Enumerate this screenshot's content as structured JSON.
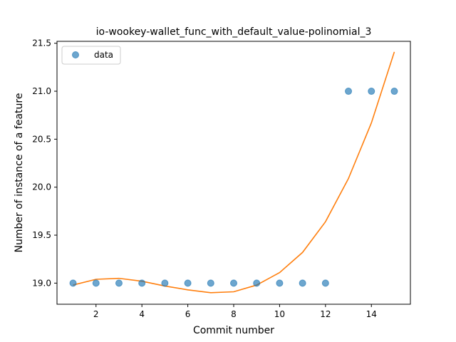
{
  "chart_data": {
    "type": "scatter",
    "title": "io-wookey-wallet_func_with_default_value-polinomial_3",
    "xlabel": "Commit number",
    "ylabel": "Number of instance of a feature",
    "xlim": [
      0.3,
      15.7
    ],
    "ylim": [
      18.78,
      21.52
    ],
    "xticks": [
      2,
      4,
      6,
      8,
      10,
      12,
      14
    ],
    "yticks": [
      19.0,
      19.5,
      20.0,
      20.5,
      21.0,
      21.5
    ],
    "ytick_labels": [
      "19.0",
      "19.5",
      "20.0",
      "20.5",
      "21.0",
      "21.5"
    ],
    "grid": false,
    "legend_position": "upper-left",
    "series": [
      {
        "name": "data",
        "kind": "scatter",
        "color": "#1f77b4",
        "x": [
          1,
          2,
          3,
          4,
          5,
          6,
          7,
          8,
          9,
          10,
          11,
          12,
          13,
          14,
          15
        ],
        "y": [
          19,
          19,
          19,
          19,
          19,
          19,
          19,
          19,
          19,
          19,
          19,
          19,
          21,
          21,
          21
        ]
      },
      {
        "kind": "line",
        "color": "#ff7f0e",
        "x": [
          1,
          2,
          3,
          4,
          5,
          6,
          7,
          8,
          9,
          10,
          11,
          12,
          13,
          14,
          15
        ],
        "y": [
          18.98,
          19.04,
          19.05,
          19.02,
          18.97,
          18.93,
          18.9,
          18.91,
          18.98,
          19.11,
          19.32,
          19.64,
          20.09,
          20.67,
          21.41
        ]
      }
    ]
  }
}
